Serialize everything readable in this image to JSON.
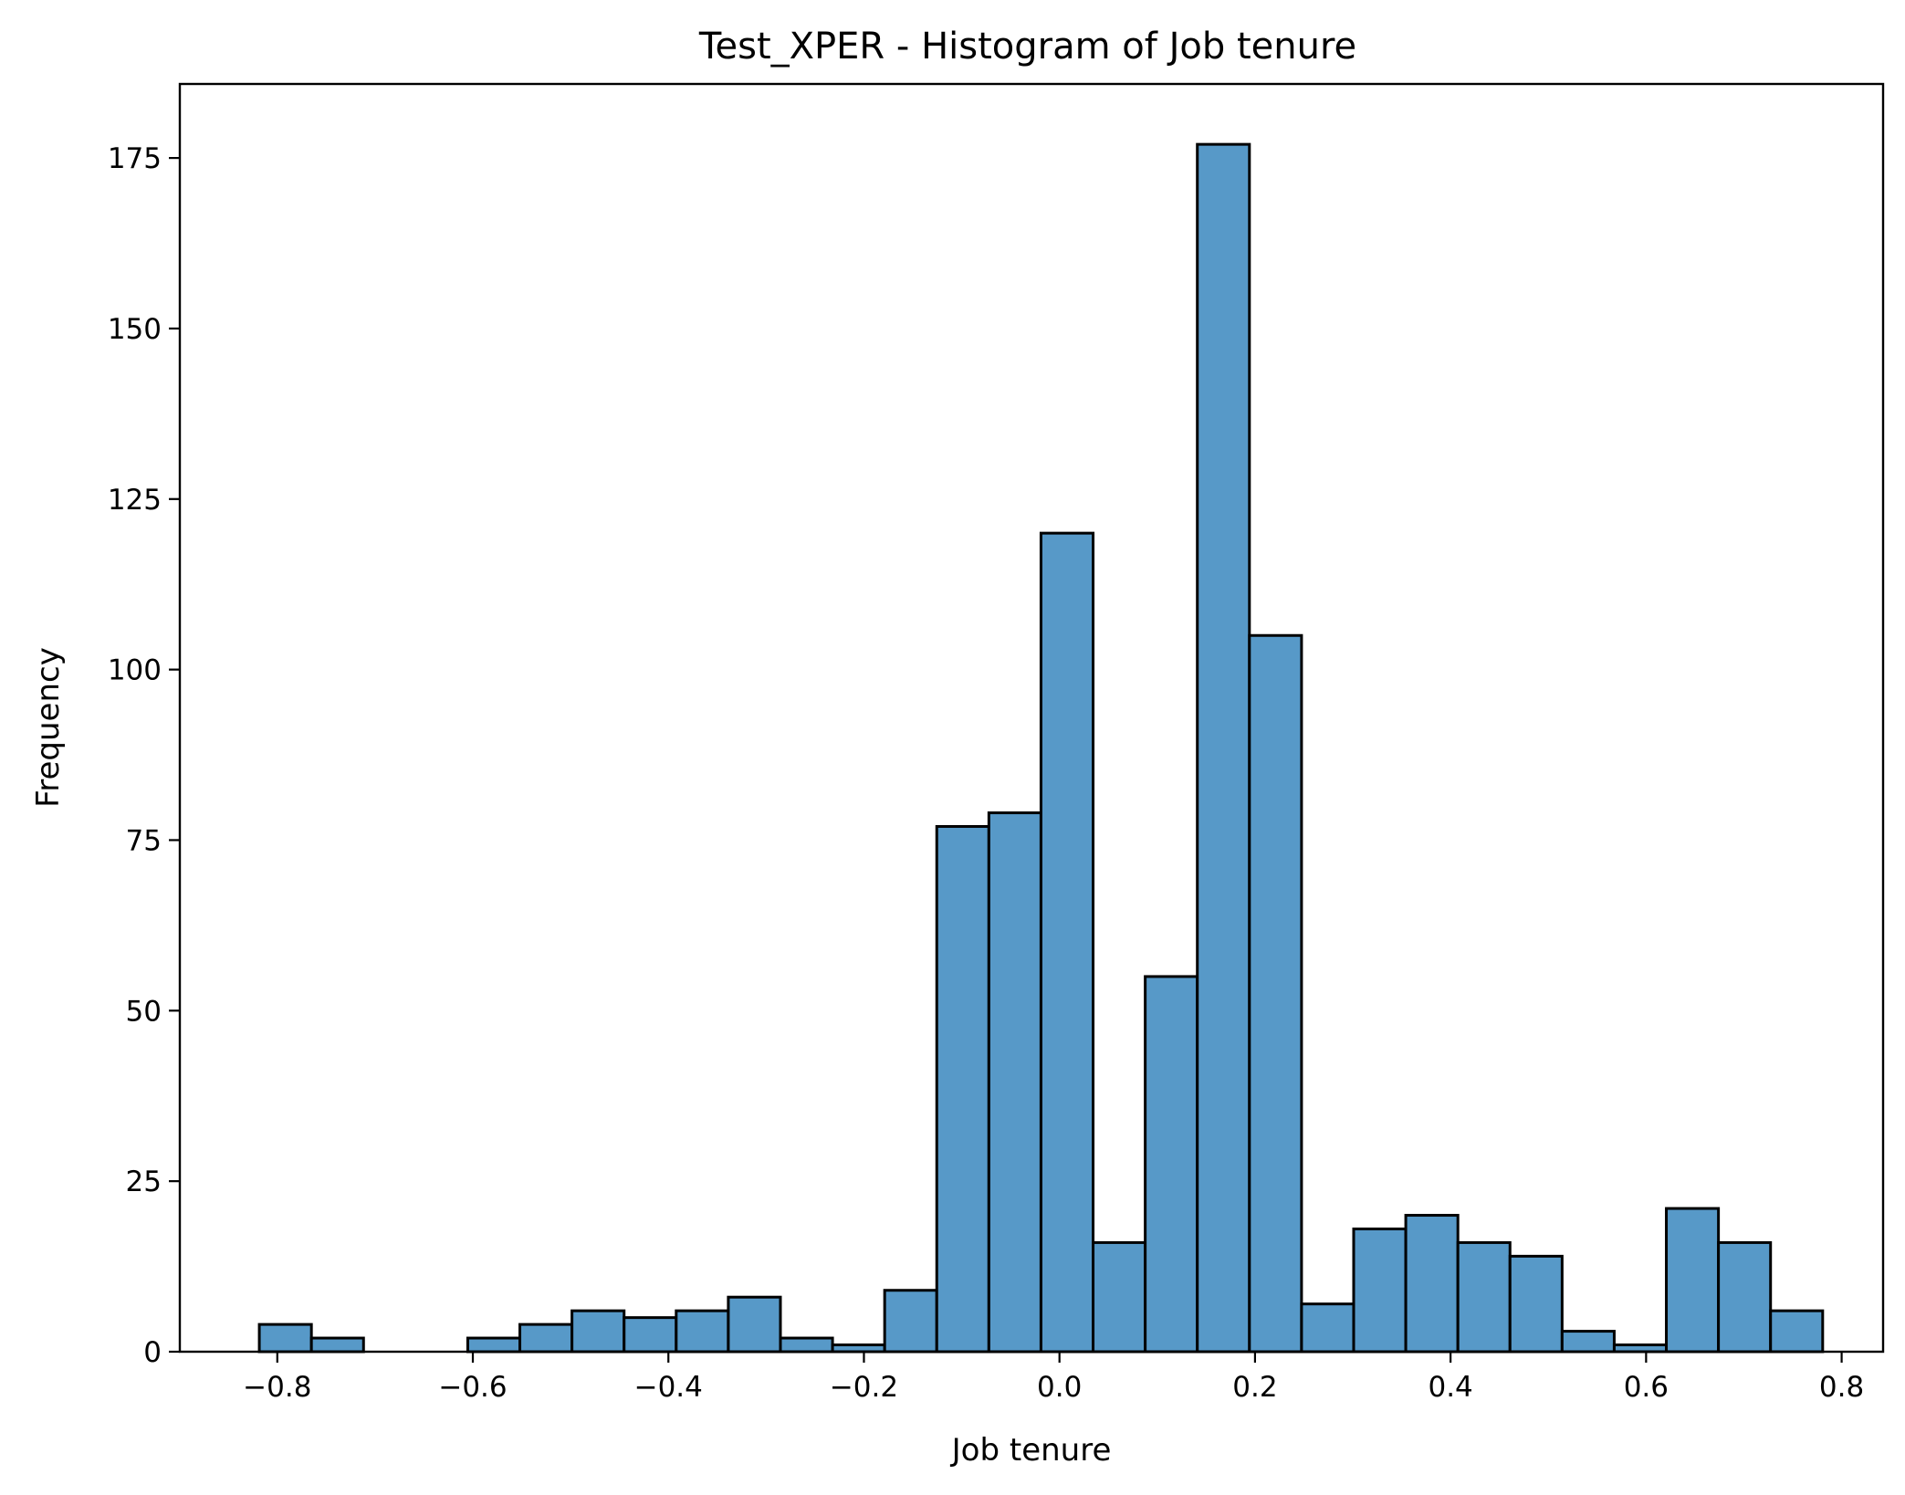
{
  "chart_data": {
    "type": "bar",
    "title": "Test_XPER - Histogram of Job tenure",
    "xlabel": "Job tenure",
    "ylabel": "Frequency",
    "xlim": [
      -0.8997,
      0.8424
    ],
    "ylim": [
      0,
      185.85
    ],
    "bin_edges": [
      -0.8184,
      -0.7651,
      -0.7118,
      -0.6585,
      -0.6052,
      -0.5519,
      -0.4986,
      -0.4453,
      -0.392,
      -0.3387,
      -0.2854,
      -0.2321,
      -0.1788,
      -0.1255,
      -0.0722,
      -0.0189,
      0.0344,
      0.0877,
      0.141,
      0.1943,
      0.2476,
      0.3009,
      0.3542,
      0.4075,
      0.4608,
      0.5141,
      0.5674,
      0.6207,
      0.674,
      0.7273,
      0.7806
    ],
    "values": [
      4,
      2,
      0,
      0,
      2,
      4,
      6,
      5,
      6,
      8,
      2,
      1,
      9,
      77,
      79,
      120,
      16,
      55,
      177,
      105,
      7,
      18,
      20,
      16,
      14,
      3,
      1,
      21,
      16,
      6
    ],
    "x_ticks": [
      -0.8,
      -0.6,
      -0.4,
      -0.2,
      0.0,
      0.2,
      0.4,
      0.6,
      0.8
    ],
    "x_tick_labels": [
      "−0.8",
      "−0.6",
      "−0.4",
      "−0.2",
      "0.0",
      "0.2",
      "0.4",
      "0.6",
      "0.8"
    ],
    "y_ticks": [
      0,
      25,
      50,
      75,
      100,
      125,
      150,
      175
    ],
    "y_tick_labels": [
      "0",
      "25",
      "50",
      "75",
      "100",
      "125",
      "150",
      "175"
    ],
    "grid": false,
    "colors": {
      "bar_fill": "#5799c8",
      "bar_edge": "#000000"
    }
  }
}
